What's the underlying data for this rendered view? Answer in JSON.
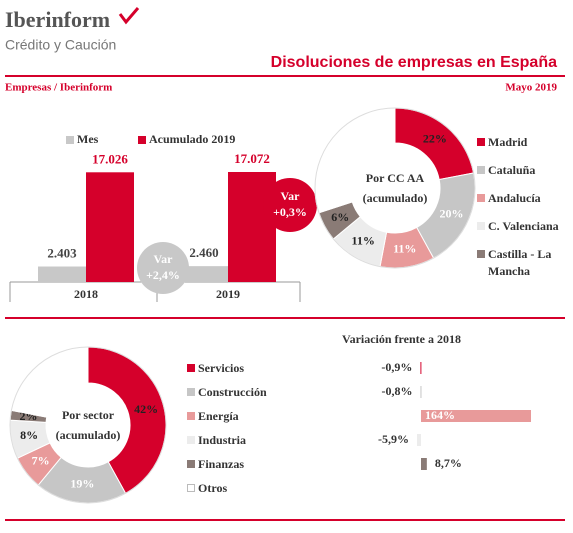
{
  "header": {
    "brand": "Iberinform",
    "brand_sub": "Crédito y Caución",
    "title": "Disoluciones de empresas en España",
    "source": "Empresas / Iberinform",
    "date": "Mayo 2019"
  },
  "chart_data": [
    {
      "type": "bar",
      "categories": [
        "2018",
        "2019"
      ],
      "series": [
        {
          "name": "Mes",
          "color": "#c8c8c8",
          "values": [
            2403,
            2460
          ],
          "value_labels": [
            "2.403",
            "2.460"
          ]
        },
        {
          "name": "Acumulado 2019",
          "color": "#d5002b",
          "values": [
            17026,
            17072
          ],
          "value_labels": [
            "17.026",
            "17.072"
          ]
        }
      ],
      "annotations": [
        {
          "title": "Var",
          "text": "+2,4%"
        },
        {
          "title": "Var",
          "text": "+0,3%"
        }
      ]
    },
    {
      "type": "pie",
      "center_label": "Por CC AA",
      "center_sublabel": "(acumulado)",
      "categories": [
        "Madrid",
        "Cataluña",
        "Andalucía",
        "C. Valenciana",
        "Castilla - La Mancha",
        null
      ],
      "values": [
        22,
        20,
        11,
        11,
        6,
        30
      ],
      "value_labels": [
        "22%",
        "20%",
        "11%",
        "11%",
        "6%",
        null
      ],
      "colors": [
        "#d5002b",
        "#c6c6c6",
        "#e89a9a",
        "#ececec",
        "#8a7b76",
        "#ffffff"
      ]
    },
    {
      "type": "pie",
      "center_label": "Por sector",
      "center_sublabel": "(acumulado)",
      "categories": [
        "Servicios",
        "Construcción",
        "Energía",
        "Industria",
        "Finanzas",
        "Otros"
      ],
      "values": [
        42,
        19,
        7,
        8,
        2,
        22
      ],
      "value_labels": [
        "42%",
        "19%",
        "7%",
        "8%",
        "2%",
        null
      ],
      "colors": [
        "#d5002b",
        "#c6c6c6",
        "#e89a9a",
        "#ececec",
        "#8a7b76",
        "#ffffff"
      ]
    },
    {
      "type": "hbar",
      "title": "Variación frente a 2018",
      "values": [
        -0.9,
        -0.8,
        164,
        -5.9,
        8.7,
        null
      ],
      "value_labels": [
        "-0,9%",
        "-0,8%",
        "164%",
        "-5,9%",
        "8,7%",
        null
      ],
      "colors": [
        "#d5002b",
        "#c6c6c6",
        "#e89a9a",
        "#ececec",
        "#8a7b76",
        null
      ]
    }
  ]
}
